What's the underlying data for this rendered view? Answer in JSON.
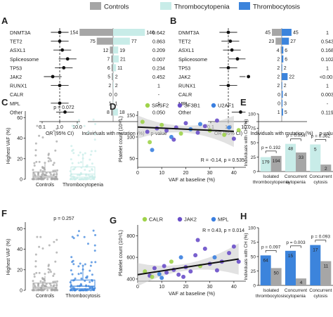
{
  "legend": {
    "items": [
      {
        "label": "Controls",
        "color": "#a6a6a6"
      },
      {
        "label": "Thrombocytopenia",
        "color": "#c8ece8"
      },
      {
        "label": "Thrombocytosis",
        "color": "#3c84dc"
      }
    ]
  },
  "chart_data": [
    {
      "panel": "A",
      "type": "bar",
      "comparison": "Controls vs Thrombocytopenia",
      "genes": [
        "DNMT3A",
        "TET2",
        "ASXL1",
        "Spliceosome",
        "TP53",
        "JAK2",
        "RUNX1",
        "CALR",
        "MPL",
        "Other"
      ],
      "series": [
        {
          "name": "Controls",
          "values": [
            154,
            75,
            12,
            7,
            6,
            5,
            2,
            0,
            1,
            8
          ]
        },
        {
          "name": "Thrombocytopenia",
          "values": [
            146,
            77,
            19,
            21,
            11,
            2,
            2,
            0,
            1,
            18
          ]
        }
      ],
      "odds_ratio": [
        1.0,
        1.0,
        1.4,
        2.8,
        1.7,
        0.4,
        1.0,
        null,
        1.0,
        2.0
      ],
      "p_values": [
        "0.642",
        "0.863",
        "0.209",
        "0.007",
        "0.234",
        "0.452",
        "1",
        "-",
        "1",
        "0.050"
      ],
      "xlabel_or": "OR (95% CI)",
      "xlabel_bar": "Individuals with mutation (%)",
      "pvalue_header": "p-value",
      "or_ticks": [
        "0.1",
        "1.0",
        "10.0"
      ]
    },
    {
      "panel": "B",
      "type": "bar",
      "comparison": "Controls vs Thrombocytosis",
      "genes": [
        "DNMT3A",
        "TET2",
        "ASXL1",
        "Spliceosome",
        "TP53",
        "JAK2",
        "RUNX1",
        "CALR",
        "MPL",
        "Other"
      ],
      "series": [
        {
          "name": "Controls",
          "values": [
            45,
            23,
            4,
            2,
            2,
            2,
            2,
            0,
            0,
            1
          ]
        },
        {
          "name": "Thrombocytosis",
          "values": [
            45,
            27,
            6,
            6,
            2,
            22,
            2,
            4,
            3,
            5
          ]
        }
      ],
      "odds_ratio": [
        1.0,
        1.3,
        1.6,
        3.3,
        1.0,
        14.0,
        1.0,
        null,
        null,
        5.0
      ],
      "p_values": [
        "1",
        "0.543",
        "0.168",
        "0.102",
        "1",
        "<0.001",
        "1",
        "0.003",
        "-",
        "0.119"
      ],
      "xlabel_or": "OR (95% CI)",
      "xlabel_bar": "Individuals with mutation (%)",
      "pvalue_header": "p-value",
      "or_ticks": [
        "0.1",
        "1.0",
        "10.0"
      ]
    },
    {
      "panel": "C",
      "type": "box",
      "ylabel": "Highest VAF (%)",
      "annotation": "p = 0.072",
      "categories": [
        "Controls",
        "Thrombocytopenia"
      ],
      "yticks": [
        0,
        20,
        40,
        60
      ],
      "ylim": [
        0,
        65
      ],
      "boxes": [
        {
          "q1": 1.5,
          "median": 3,
          "q3": 7,
          "whisker_low": 0.5,
          "whisker_high": 15
        },
        {
          "q1": 2,
          "median": 5,
          "q3": 12,
          "whisker_low": 0.5,
          "whisker_high": 25
        }
      ]
    },
    {
      "panel": "D",
      "type": "scatter",
      "legend": [
        "SRSF2",
        "SF3B1",
        "U2AF1"
      ],
      "xlabel": "VAF at baseline (%)",
      "ylabel": "Platelet count (10⁹/L)",
      "xticks": [
        0,
        10,
        20,
        30,
        40
      ],
      "yticks": [
        50,
        100,
        150
      ],
      "xlim": [
        0,
        45
      ],
      "ylim": [
        30,
        160
      ],
      "annotation": "R = -0.14, p = 0.535",
      "fit": {
        "x": [
          0,
          40
        ],
        "y": [
          123,
          113
        ]
      },
      "points": [
        {
          "group": "SRSF2",
          "x": 2,
          "y": 135
        },
        {
          "group": "SF3B1",
          "x": 4,
          "y": 112
        },
        {
          "group": "U2AF1",
          "x": 6,
          "y": 70
        },
        {
          "group": "SF3B1",
          "x": 8,
          "y": 120
        },
        {
          "group": "SRSF2",
          "x": 10,
          "y": 128
        },
        {
          "group": "SF3B1",
          "x": 12,
          "y": 115
        },
        {
          "group": "U2AF1",
          "x": 14,
          "y": 100
        },
        {
          "group": "SF3B1",
          "x": 16,
          "y": 122
        },
        {
          "group": "SRSF2",
          "x": 18,
          "y": 108
        },
        {
          "group": "SF3B1",
          "x": 20,
          "y": 132
        },
        {
          "group": "U2AF1",
          "x": 22,
          "y": 118
        },
        {
          "group": "SF3B1",
          "x": 25,
          "y": 110
        },
        {
          "group": "SF3B1",
          "x": 28,
          "y": 125
        },
        {
          "group": "SRSF2",
          "x": 30,
          "y": 115
        },
        {
          "group": "SF3B1",
          "x": 33,
          "y": 138
        },
        {
          "group": "SRSF2",
          "x": 36,
          "y": 105
        },
        {
          "group": "U2AF1",
          "x": 38,
          "y": 122
        },
        {
          "group": "SF3B1",
          "x": 40,
          "y": 96
        },
        {
          "group": "SRSF2",
          "x": 42,
          "y": 116
        },
        {
          "group": "SRSF2",
          "x": 5,
          "y": 88
        },
        {
          "group": "SF3B1",
          "x": 15,
          "y": 94
        },
        {
          "group": "U2AF1",
          "x": 26,
          "y": 130
        }
      ]
    },
    {
      "panel": "E",
      "type": "bar",
      "ylabel": "Individuals with CH (%)",
      "yticks": [
        0,
        25,
        50,
        75,
        100
      ],
      "ylim": [
        0,
        100
      ],
      "groups": [
        {
          "category": "Isolated thrombocytopenia",
          "p": "p = 0.192",
          "values": [
            25,
            27
          ],
          "labels": [
            "179",
            "194"
          ]
        },
        {
          "category": "Concurrent cytopenia",
          "p": "p = 0.054",
          "values": [
            48,
            33
          ],
          "labels": [
            "48",
            "33"
          ]
        },
        {
          "category": "Concurrent cytosis",
          "p": "p = 0.362",
          "values": [
            47,
            12
          ],
          "labels": [
            "5",
            "2"
          ]
        }
      ],
      "series_names": [
        "Thrombocytopenia",
        "Controls"
      ]
    },
    {
      "panel": "F",
      "type": "box",
      "ylabel": "Highest VAF (%)",
      "annotation": "p = 0.257",
      "categories": [
        "Controls",
        "Thrombocytosis"
      ],
      "yticks": [
        0,
        20,
        40,
        60
      ],
      "ylim": [
        0,
        65
      ],
      "boxes": [
        {
          "q1": 1.5,
          "median": 3,
          "q3": 7,
          "whisker_low": 0.5,
          "whisker_high": 14
        },
        {
          "q1": 1.5,
          "median": 4,
          "q3": 10,
          "whisker_low": 0.5,
          "whisker_high": 24
        }
      ]
    },
    {
      "panel": "G",
      "type": "scatter",
      "legend": [
        "CALR",
        "JAK2",
        "MPL"
      ],
      "xlabel": "VAF at baseline (%)",
      "ylabel": "Platelet count (10⁹/L)",
      "xticks": [
        0,
        10,
        20,
        30,
        40
      ],
      "yticks": [
        400,
        600,
        800
      ],
      "xlim": [
        0,
        45
      ],
      "ylim": [
        380,
        900
      ],
      "annotation": "R = 0.43, p = 0.014",
      "fit": {
        "x": [
          0,
          42
        ],
        "y": [
          440,
          585
        ]
      },
      "points": [
        {
          "group": "CALR",
          "x": 3,
          "y": 470
        },
        {
          "group": "JAK2",
          "x": 5,
          "y": 430
        },
        {
          "group": "JAK2",
          "x": 7,
          "y": 500
        },
        {
          "group": "MPL",
          "x": 9,
          "y": 445
        },
        {
          "group": "JAK2",
          "x": 11,
          "y": 520
        },
        {
          "group": "JAK2",
          "x": 12,
          "y": 460
        },
        {
          "group": "CALR",
          "x": 14,
          "y": 560
        },
        {
          "group": "JAK2",
          "x": 15,
          "y": 485
        },
        {
          "group": "JAK2",
          "x": 17,
          "y": 440
        },
        {
          "group": "MPL",
          "x": 18,
          "y": 600
        },
        {
          "group": "JAK2",
          "x": 20,
          "y": 510
        },
        {
          "group": "JAK2",
          "x": 22,
          "y": 470
        },
        {
          "group": "JAK2",
          "x": 24,
          "y": 620
        },
        {
          "group": "CALR",
          "x": 26,
          "y": 520
        },
        {
          "group": "JAK2",
          "x": 28,
          "y": 680
        },
        {
          "group": "JAK2",
          "x": 30,
          "y": 540
        },
        {
          "group": "MPL",
          "x": 32,
          "y": 600
        },
        {
          "group": "JAK2",
          "x": 35,
          "y": 560
        },
        {
          "group": "JAK2",
          "x": 38,
          "y": 640
        },
        {
          "group": "JAK2",
          "x": 40,
          "y": 700
        },
        {
          "group": "JAK2",
          "x": 42,
          "y": 560
        },
        {
          "group": "CALR",
          "x": 6,
          "y": 420
        },
        {
          "group": "JAK2",
          "x": 19,
          "y": 420
        },
        {
          "group": "JAK2",
          "x": 25,
          "y": 760
        },
        {
          "group": "MPL",
          "x": 10,
          "y": 410
        },
        {
          "group": "JAK2",
          "x": 33,
          "y": 480
        }
      ]
    },
    {
      "panel": "H",
      "type": "bar",
      "ylabel": "Individuals with CH (%)",
      "yticks": [
        0,
        25,
        50,
        75,
        100
      ],
      "ylim": [
        0,
        100
      ],
      "groups": [
        {
          "category": "Isolated thrombocytosis",
          "p": "p = 0.097",
          "values": [
            52,
            30
          ],
          "labels": [
            "64",
            "50"
          ]
        },
        {
          "category": "Concurrent cytopenia",
          "p": "p = 0.003",
          "values": [
            60,
            12
          ],
          "labels": [
            "15",
            "4"
          ]
        },
        {
          "category": "Concurrent cytosis",
          "p": "p = 0.093",
          "values": [
            70,
            42
          ],
          "labels": [
            "17",
            "11"
          ]
        }
      ],
      "series_names": [
        "Thrombocytosis",
        "Controls"
      ]
    }
  ],
  "panel_letters": [
    "A",
    "B",
    "C",
    "D",
    "E",
    "F",
    "G",
    "H"
  ]
}
